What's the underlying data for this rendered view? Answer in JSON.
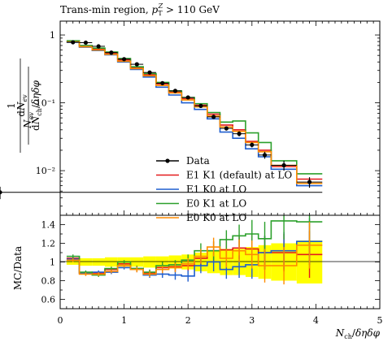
{
  "chart_data": {
    "type": "line",
    "title": "Trans-min region, p_T^Z > 110 GeV",
    "xlabel": "N_ch / δη δφ",
    "ylabel": "1/N_ev dN_ev / dN_ch/δηδφ",
    "ratio_ylabel": "MC/Data",
    "log_y": true,
    "xlim": [
      0,
      5
    ],
    "ylim": [
      0.0022,
      1.6
    ],
    "ratio_ylim": [
      0.5,
      1.5
    ],
    "x_ticks": [
      "0",
      "1",
      "2",
      "3",
      "4",
      "5"
    ],
    "y_ticks": [
      "10⁻²",
      "10⁻¹",
      "1"
    ],
    "ratio_y_ticks": [
      "0.6",
      "0.8",
      "1",
      "1.2",
      "1.4"
    ],
    "legend_position": "bottom-center",
    "bin_edges": [
      0.1,
      0.3,
      0.5,
      0.7,
      0.9,
      1.1,
      1.3,
      1.5,
      1.7,
      1.9,
      2.1,
      2.3,
      2.5,
      2.7,
      2.9,
      3.1,
      3.3,
      3.7,
      4.1
    ],
    "data": {
      "name": "Data",
      "color": "#000000",
      "values": [
        0.78,
        0.77,
        0.68,
        0.55,
        0.44,
        0.37,
        0.28,
        0.195,
        0.15,
        0.12,
        0.09,
        0.062,
        0.042,
        0.035,
        0.024,
        0.017,
        0.012,
        0.0068,
        0.0048
      ],
      "errors": [
        0.02,
        0.02,
        0.02,
        0.015,
        0.012,
        0.01,
        0.008,
        0.006,
        0.005,
        0.004,
        0.004,
        0.003,
        0.003,
        0.003,
        0.002,
        0.002,
        0.002,
        0.0012,
        0.001
      ],
      "ratio_band": [
        0.03,
        0.04,
        0.04,
        0.05,
        0.05,
        0.05,
        0.06,
        0.06,
        0.07,
        0.08,
        0.1,
        0.12,
        0.14,
        0.14,
        0.16,
        0.18,
        0.2,
        0.23
      ],
      "band_color": "#ffff00"
    },
    "series": [
      {
        "name": "E1 K1 (default) at LO",
        "color": "#e41a1c",
        "values": [
          0.8,
          0.68,
          0.62,
          0.54,
          0.43,
          0.33,
          0.26,
          0.19,
          0.145,
          0.115,
          0.092,
          0.068,
          0.047,
          0.04,
          0.027,
          0.02,
          0.0115,
          0.0075,
          0.0052
        ],
        "ratio": [
          1.04,
          0.88,
          0.88,
          0.92,
          0.98,
          0.92,
          0.88,
          0.94,
          0.95,
          0.96,
          1.04,
          1.12,
          1.13,
          1.15,
          1.14,
          1.1,
          1.1,
          1.08
        ],
        "ratio_err": [
          0.02,
          0.02,
          0.02,
          0.02,
          0.02,
          0.03,
          0.03,
          0.04,
          0.05,
          0.06,
          0.08,
          0.1,
          0.1,
          0.12,
          0.15,
          0.18,
          0.2,
          0.25
        ]
      },
      {
        "name": "E1 K0 at LO",
        "color": "#1f5ecf",
        "values": [
          0.78,
          0.66,
          0.59,
          0.51,
          0.4,
          0.31,
          0.24,
          0.17,
          0.13,
          0.1,
          0.08,
          0.058,
          0.037,
          0.03,
          0.021,
          0.016,
          0.0105,
          0.006,
          0.0043
        ],
        "ratio": [
          1.03,
          0.88,
          0.89,
          0.89,
          0.94,
          0.93,
          0.86,
          0.87,
          0.86,
          0.85,
          0.96,
          1.0,
          0.92,
          0.95,
          0.97,
          1.1,
          1.12,
          1.22
        ],
        "ratio_err": [
          0.02,
          0.02,
          0.02,
          0.02,
          0.02,
          0.03,
          0.03,
          0.04,
          0.05,
          0.06,
          0.08,
          0.1,
          0.1,
          0.12,
          0.15,
          0.18,
          0.2,
          0.25
        ]
      },
      {
        "name": "E0 K1 at LO",
        "color": "#2ca02c",
        "values": [
          0.82,
          0.7,
          0.64,
          0.56,
          0.45,
          0.34,
          0.27,
          0.2,
          0.15,
          0.12,
          0.097,
          0.072,
          0.052,
          0.054,
          0.036,
          0.026,
          0.014,
          0.009,
          0.007
        ],
        "ratio": [
          1.06,
          0.89,
          0.86,
          0.93,
          1.0,
          0.93,
          0.89,
          0.96,
          0.97,
          1.02,
          1.12,
          1.12,
          1.24,
          1.28,
          1.3,
          1.25,
          1.44,
          1.43
        ],
        "ratio_err": [
          0.02,
          0.02,
          0.02,
          0.02,
          0.02,
          0.03,
          0.03,
          0.04,
          0.05,
          0.06,
          0.08,
          0.1,
          0.1,
          0.12,
          0.15,
          0.18,
          0.2,
          0.25
        ]
      },
      {
        "name": "E0 K0 at LO",
        "color": "#ff8c00",
        "values": [
          0.79,
          0.67,
          0.6,
          0.52,
          0.41,
          0.32,
          0.25,
          0.18,
          0.14,
          0.11,
          0.087,
          0.064,
          0.044,
          0.038,
          0.026,
          0.019,
          0.012,
          0.0065,
          0.0046
        ],
        "ratio": [
          1.02,
          0.87,
          0.87,
          0.9,
          0.96,
          0.92,
          0.87,
          0.92,
          0.94,
          0.98,
          1.06,
          1.16,
          1.04,
          1.12,
          1.08,
          0.96,
          0.96,
          1.18
        ],
        "ratio_err": [
          0.02,
          0.02,
          0.02,
          0.02,
          0.02,
          0.03,
          0.03,
          0.04,
          0.05,
          0.06,
          0.08,
          0.1,
          0.1,
          0.12,
          0.15,
          0.18,
          0.2,
          0.25
        ]
      }
    ]
  }
}
